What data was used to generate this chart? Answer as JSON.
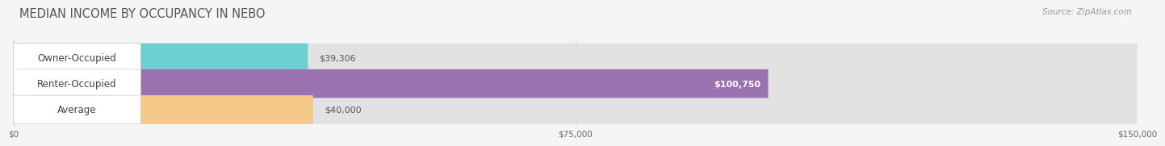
{
  "title": "MEDIAN INCOME BY OCCUPANCY IN NEBO",
  "source": "Source: ZipAtlas.com",
  "categories": [
    "Owner-Occupied",
    "Renter-Occupied",
    "Average"
  ],
  "values": [
    39306,
    100750,
    40000
  ],
  "bar_colors": [
    "#6dcfcf",
    "#9b72b0",
    "#f5c98a"
  ],
  "label_colors": [
    "#555555",
    "#ffffff",
    "#555555"
  ],
  "value_labels": [
    "$39,306",
    "$100,750",
    "$40,000"
  ],
  "xlim": [
    0,
    150000
  ],
  "xticks": [
    0,
    75000,
    150000
  ],
  "xtick_labels": [
    "$0",
    "$75,000",
    "$150,000"
  ],
  "bar_height": 0.55,
  "background_color": "#f5f5f5",
  "bar_bg_color": "#e2e2e2",
  "title_fontsize": 10.5,
  "label_fontsize": 8.5,
  "value_fontsize": 8,
  "source_fontsize": 7.5
}
